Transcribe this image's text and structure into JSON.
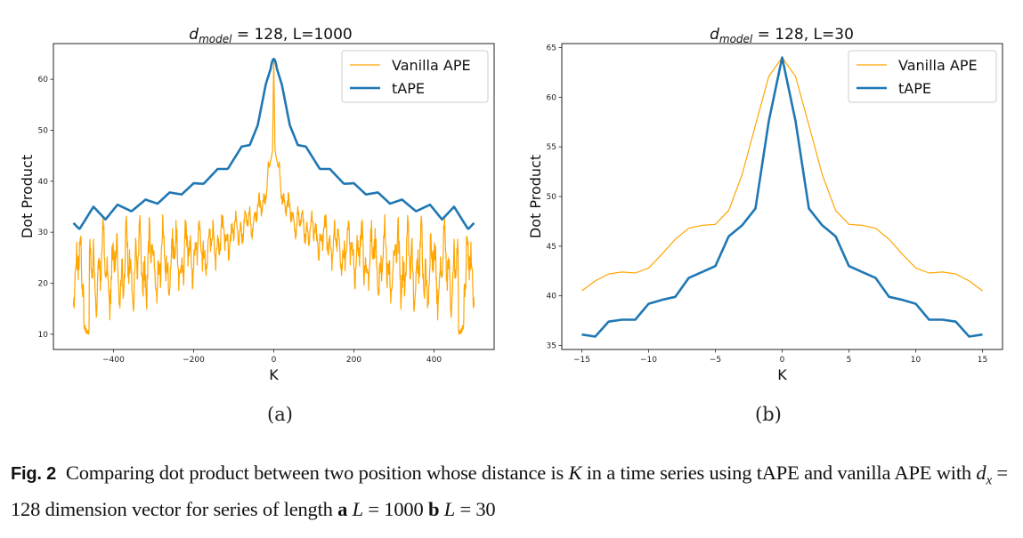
{
  "figure": {
    "sub_labels": [
      "(a)",
      "(b)"
    ],
    "caption": {
      "fig_label": "Fig. 2",
      "text_1": "Comparing dot product between two position whose distance is ",
      "k_var": "K",
      "text_2": " in a time series using tAPE and vanilla APE with ",
      "d_var": "d",
      "d_sub": "x",
      "text_3": " = 128 dimension vector for series of length ",
      "a_label": "a",
      "L_var_a": "L",
      "a_value": " = 1000 ",
      "b_label": "b",
      "L_var_b": "L",
      "b_value": " = 30"
    }
  },
  "colors": {
    "vanilla": "#FFA500",
    "tape": "#1F77B4"
  },
  "chart_data": [
    {
      "type": "line",
      "title": "d_model = 128, L=1000",
      "title_var": "d",
      "title_sub": "model",
      "title_rest": " = 128, L=1000",
      "xlabel": "K",
      "ylabel": "Dot Product",
      "xlim": [
        -550,
        550
      ],
      "ylim": [
        7,
        67
      ],
      "xticks": [
        -400,
        -200,
        0,
        200,
        400
      ],
      "xtick_labels": [
        "−400",
        "−200",
        "0",
        "200",
        "400"
      ],
      "yticks": [
        10,
        20,
        30,
        40,
        50,
        60
      ],
      "ytick_labels": [
        "10",
        "20",
        "30",
        "40",
        "50",
        "60"
      ],
      "grid": false,
      "legend": {
        "position": "top-right",
        "entries": [
          "Vanilla APE",
          "tAPE"
        ]
      },
      "series": [
        {
          "name": "Vanilla APE",
          "x_range": [
            -500,
            500
          ],
          "description": "Sharp peak of 64 at K=0, decaying to ~35 near |K|=30, ~30 at |K|=100, ~25 at |K|=200, then noisy oscillation between ~9 and ~25 toward |K|=500; symmetric about 0",
          "x": [
            -500,
            -490,
            -480,
            -470,
            -460,
            -450,
            -440,
            -420,
            -400,
            -380,
            -360,
            -340,
            -320,
            -300,
            -280,
            -260,
            -240,
            -220,
            -200,
            -180,
            -160,
            -140,
            -120,
            -100,
            -80,
            -60,
            -40,
            -20,
            -10,
            0
          ],
          "y": [
            19,
            22,
            16,
            10,
            18,
            17,
            24,
            12,
            25,
            13,
            24,
            13,
            25,
            13,
            25,
            17,
            25,
            19,
            27,
            21,
            28,
            25,
            30,
            28,
            32,
            33,
            35,
            40,
            46,
            64
          ]
        },
        {
          "name": "tAPE",
          "x_range": [
            -500,
            500
          ],
          "description": "Smooth peak of 64 at K=0 with step-like plateaus, decaying with oscillations to ~31 at |K|=500; symmetric about 0",
          "x": [
            -500,
            -485,
            -450,
            -420,
            -390,
            -355,
            -320,
            -290,
            -260,
            -230,
            -200,
            -175,
            -140,
            -115,
            -80,
            -60,
            -40,
            -20,
            0
          ],
          "y": [
            31.8,
            30.6,
            35.0,
            32.5,
            35.4,
            34.1,
            36.4,
            35.6,
            37.8,
            37.4,
            39.6,
            39.5,
            42.4,
            42.4,
            46.8,
            47.1,
            51,
            59,
            64
          ]
        }
      ]
    },
    {
      "type": "line",
      "title": "d_model = 128, L=30",
      "title_var": "d",
      "title_sub": "model",
      "title_rest": " = 128, L=30",
      "xlabel": "K",
      "ylabel": "Dot Product",
      "xlim": [
        -16.5,
        16.5
      ],
      "ylim": [
        34.6,
        65.4
      ],
      "xticks": [
        -15,
        -10,
        -5,
        0,
        5,
        10,
        15
      ],
      "xtick_labels": [
        "−15",
        "−10",
        "−5",
        "0",
        "5",
        "10",
        "15"
      ],
      "yticks": [
        35,
        40,
        45,
        50,
        55,
        60,
        65
      ],
      "ytick_labels": [
        "35",
        "40",
        "45",
        "50",
        "55",
        "60",
        "65"
      ],
      "grid": false,
      "legend": {
        "position": "top-right",
        "entries": [
          "Vanilla APE",
          "tAPE"
        ]
      },
      "x": [
        -15,
        -14,
        -13,
        -12,
        -11,
        -10,
        -9,
        -8,
        -7,
        -6,
        -5,
        -4,
        -3,
        -2,
        -1,
        0,
        1,
        2,
        3,
        4,
        5,
        6,
        7,
        8,
        9,
        10,
        11,
        12,
        13,
        14,
        15
      ],
      "series": [
        {
          "name": "Vanilla APE",
          "values": [
            40.5,
            41.5,
            42.2,
            42.4,
            42.3,
            42.8,
            44.2,
            45.7,
            46.8,
            47.1,
            47.2,
            48.6,
            52.2,
            57.2,
            62.1,
            64.0,
            62.1,
            57.2,
            52.2,
            48.6,
            47.2,
            47.1,
            46.8,
            45.7,
            44.2,
            42.8,
            42.3,
            42.4,
            42.2,
            41.5,
            40.5
          ]
        },
        {
          "name": "tAPE",
          "values": [
            36.1,
            35.9,
            37.4,
            37.6,
            37.6,
            39.2,
            39.6,
            39.9,
            41.8,
            42.4,
            43.0,
            46.0,
            47.1,
            48.8,
            57.6,
            64.0,
            57.6,
            48.8,
            47.1,
            46.0,
            43.0,
            42.4,
            41.8,
            39.9,
            39.6,
            39.2,
            37.6,
            37.6,
            37.4,
            35.9,
            36.1
          ]
        }
      ]
    }
  ]
}
